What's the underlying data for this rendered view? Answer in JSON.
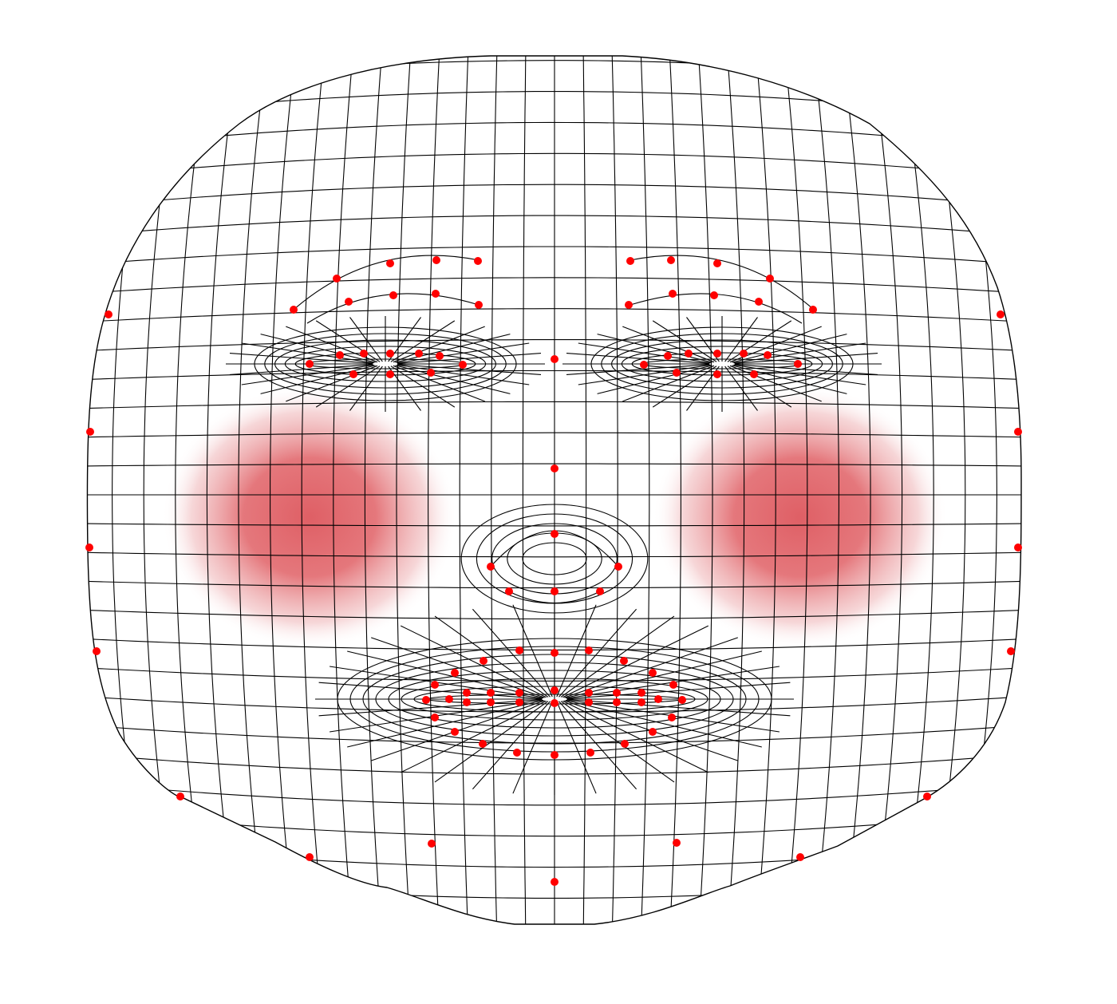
{
  "diagram": {
    "kind": "face-mesh-landmarks",
    "text_labels": [],
    "colors": {
      "background": "#ffffff",
      "mesh_lines": "#000000",
      "landmarks": "#ff0000",
      "cheek_highlight": "#d9434a"
    },
    "regions": [
      "face-outline",
      "left-brow",
      "right-brow",
      "left-eye",
      "right-eye",
      "nose",
      "mouth",
      "left-cheek",
      "right-cheek"
    ]
  }
}
